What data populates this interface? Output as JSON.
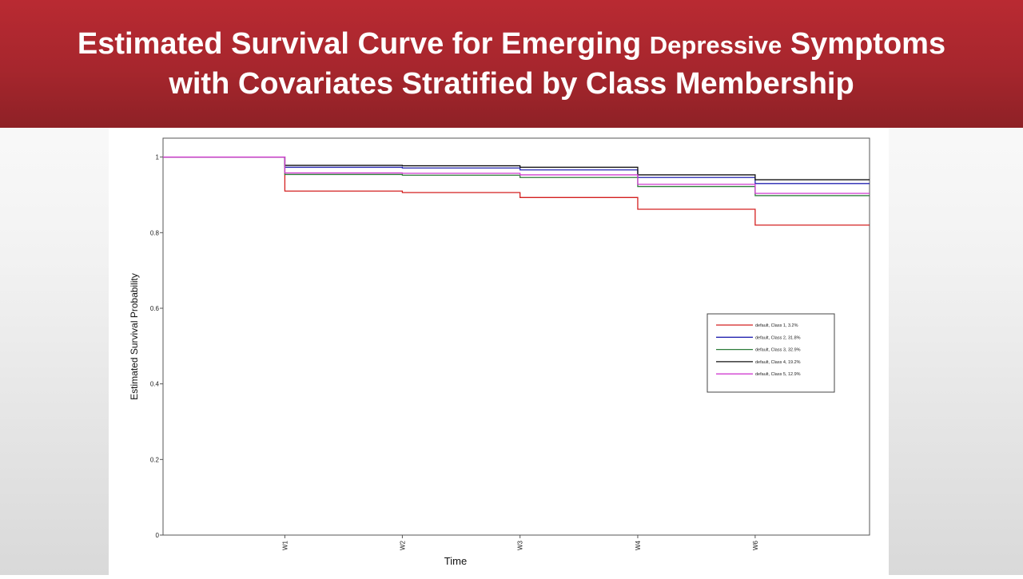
{
  "slide": {
    "title_part1": "Estimated Survival Curve for Emerging ",
    "title_small": "Depressive",
    "title_part2": " Symptoms",
    "title_line2": "with Covariates Stratified by Class Membership"
  },
  "chart_data": {
    "type": "line",
    "step": true,
    "xlabel": "Time",
    "ylabel": "Estimated Survival Probability",
    "ylim": [
      0,
      1.05
    ],
    "yticks": [
      "0",
      "0.2",
      "0.4",
      "0.6",
      "0.8",
      "1"
    ],
    "xticks": [
      "W1",
      "W2",
      "W3",
      "W4",
      "W6"
    ],
    "grid": false,
    "legend_position": "right",
    "series": [
      {
        "name": "default, Class 1, 3.2%",
        "color": "#d42020",
        "values": [
          1.0,
          0.91,
          0.906,
          0.893,
          0.862,
          0.82
        ]
      },
      {
        "name": "default, Class 2, 31.8%",
        "color": "#2424b0",
        "values": [
          1.0,
          0.973,
          0.971,
          0.966,
          0.946,
          0.93
        ]
      },
      {
        "name": "default, Class 3, 32.9%",
        "color": "#2e7d3a",
        "values": [
          1.0,
          0.954,
          0.952,
          0.946,
          0.922,
          0.898
        ]
      },
      {
        "name": "default, Class 4, 19.2%",
        "color": "#111111",
        "values": [
          1.0,
          0.978,
          0.977,
          0.973,
          0.953,
          0.94
        ]
      },
      {
        "name": "default, Class 5, 12.9%",
        "color": "#d13ed1",
        "values": [
          1.0,
          0.958,
          0.957,
          0.953,
          0.928,
          0.904
        ]
      }
    ]
  }
}
